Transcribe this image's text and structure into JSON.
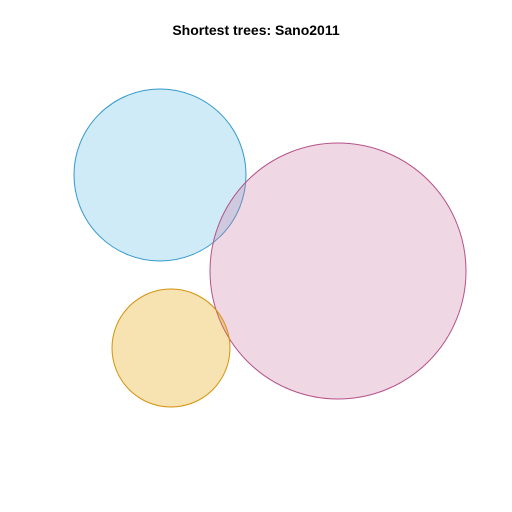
{
  "title": "Shortest trees: Sano2011",
  "colors": {
    "blue_fill": "#87CEEB",
    "blue_stroke": "#3399CC",
    "pink_fill": "#CC79A7",
    "pink_stroke": "#B5528A",
    "orange_fill": "#E69F00",
    "orange_stroke": "#D4920A"
  },
  "diagram": {
    "type": "euler",
    "sets": [
      {
        "id": "set-blue",
        "color": "blue_fill",
        "stroke": "blue_stroke"
      },
      {
        "id": "set-pink",
        "color": "pink_fill",
        "stroke": "pink_stroke"
      },
      {
        "id": "set-orange",
        "color": "orange_fill",
        "stroke": "orange_stroke"
      }
    ]
  }
}
